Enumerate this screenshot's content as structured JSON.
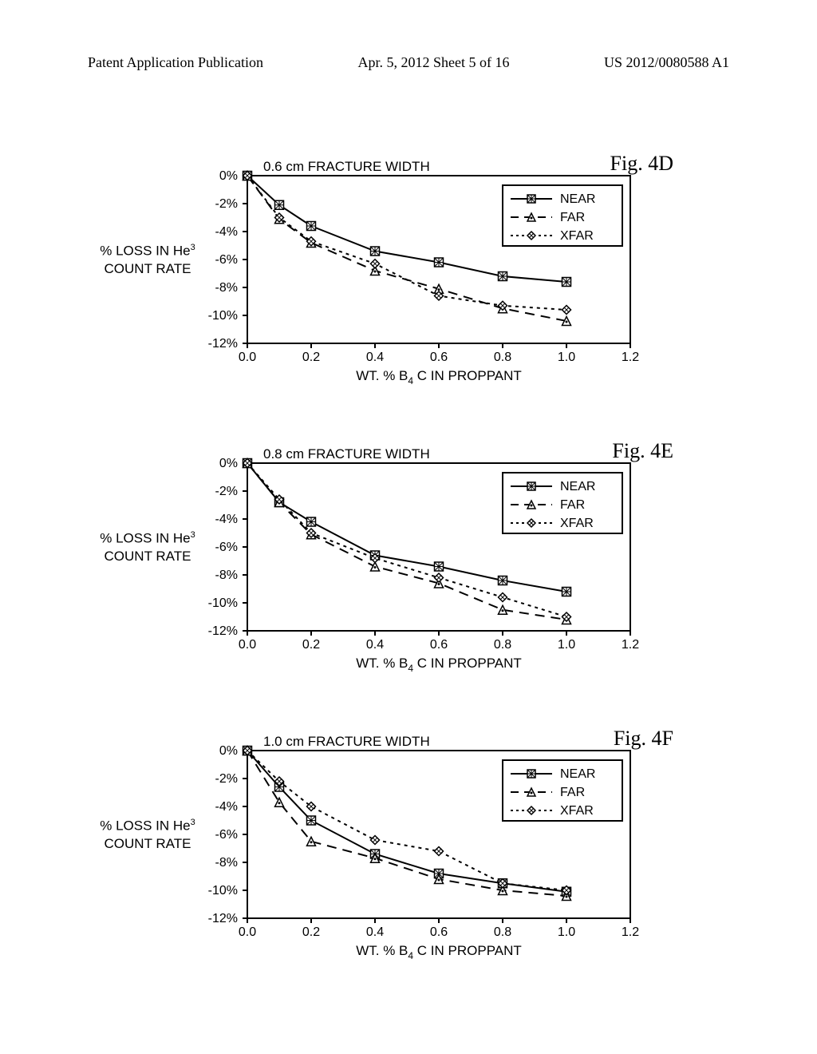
{
  "header": {
    "left": "Patent Application Publication",
    "center": "Apr. 5, 2012  Sheet 5 of 16",
    "right": "US 2012/0080588 A1"
  },
  "common": {
    "y_label_line1": "% LOSS IN He",
    "y_label_sup": "3",
    "y_label_line2": "COUNT RATE",
    "x_label_prefix": "WT. % B",
    "x_label_sub": "4",
    "x_label_suffix": " C IN PROPPANT",
    "legend": {
      "near": "NEAR",
      "far": "FAR",
      "xfar": "XFAR"
    },
    "x_ticks": [
      "0.0",
      "0.2",
      "0.4",
      "0.6",
      "0.8",
      "1.0",
      "1.2"
    ],
    "y_ticks": [
      "0%",
      "-2%",
      "-4%",
      "-6%",
      "-8%",
      "-10%",
      "-12%"
    ],
    "colors": {
      "line": "#000000",
      "text": "#000000",
      "bg": "#ffffff"
    }
  },
  "charts": [
    {
      "fig": "Fig. 4D",
      "title": "0.6 cm FRACTURE WIDTH",
      "near": {
        "x": [
          0.0,
          0.1,
          0.2,
          0.4,
          0.6,
          0.8,
          1.0
        ],
        "y": [
          0,
          -2.1,
          -3.6,
          -5.4,
          -6.2,
          -7.2,
          -7.6
        ]
      },
      "far": {
        "x": [
          0.0,
          0.1,
          0.2,
          0.4,
          0.6,
          0.8,
          1.0
        ],
        "y": [
          0,
          -3.1,
          -4.8,
          -6.8,
          -8.1,
          -9.5,
          -10.4
        ]
      },
      "xfar": {
        "x": [
          0.0,
          0.1,
          0.2,
          0.4,
          0.6,
          0.8,
          1.0
        ],
        "y": [
          0,
          -3.0,
          -4.7,
          -6.3,
          -8.6,
          -9.3,
          -9.6
        ]
      }
    },
    {
      "fig": "Fig. 4E",
      "title": "0.8 cm FRACTURE WIDTH",
      "near": {
        "x": [
          0.0,
          0.1,
          0.2,
          0.4,
          0.6,
          0.8,
          1.0
        ],
        "y": [
          0,
          -2.8,
          -4.2,
          -6.6,
          -7.4,
          -8.4,
          -9.2
        ]
      },
      "far": {
        "x": [
          0.0,
          0.1,
          0.2,
          0.4,
          0.6,
          0.8,
          1.0
        ],
        "y": [
          0,
          -2.8,
          -5.1,
          -7.4,
          -8.6,
          -10.5,
          -11.2
        ]
      },
      "xfar": {
        "x": [
          0.0,
          0.1,
          0.2,
          0.4,
          0.6,
          0.8,
          1.0
        ],
        "y": [
          0,
          -2.6,
          -5.0,
          -6.8,
          -8.2,
          -9.6,
          -11.0
        ]
      }
    },
    {
      "fig": "Fig. 4F",
      "title": "1.0 cm FRACTURE WIDTH",
      "near": {
        "x": [
          0.0,
          0.1,
          0.2,
          0.4,
          0.6,
          0.8,
          1.0
        ],
        "y": [
          0,
          -2.6,
          -5.0,
          -7.4,
          -8.8,
          -9.5,
          -10.1
        ]
      },
      "far": {
        "x": [
          0.0,
          0.1,
          0.2,
          0.4,
          0.6,
          0.8,
          1.0
        ],
        "y": [
          0,
          -3.7,
          -6.5,
          -7.7,
          -9.2,
          -10.0,
          -10.4
        ]
      },
      "xfar": {
        "x": [
          0.0,
          0.1,
          0.2,
          0.4,
          0.6,
          0.8,
          1.0
        ],
        "y": [
          0,
          -2.2,
          -4.0,
          -6.4,
          -7.2,
          -9.5,
          -10.0
        ]
      }
    }
  ]
}
